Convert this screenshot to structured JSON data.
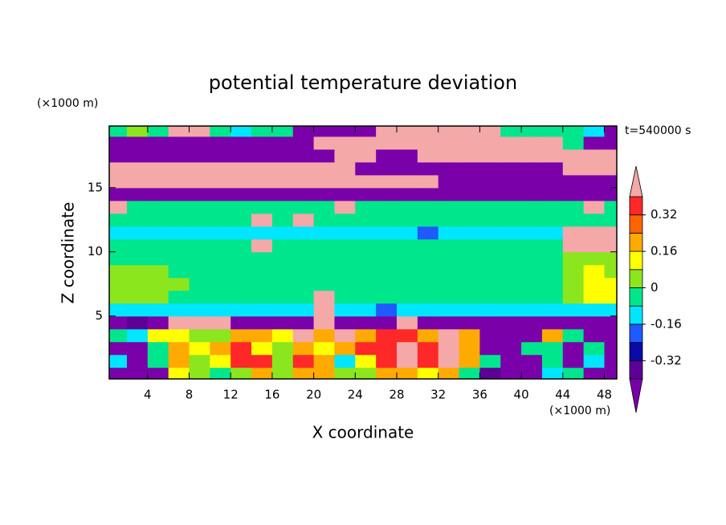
{
  "chart_data": {
    "type": "contour",
    "title": "potential temperature deviation",
    "xlabel": "X coordinate",
    "ylabel": "Z coordinate",
    "x_unit": "(×1000 m)",
    "y_unit": "(×1000 m)",
    "annotation": "t=540000 s",
    "xlim": [
      0.3,
      49.2
    ],
    "ylim": [
      0.1,
      19.8
    ],
    "xticks": [
      4,
      8,
      12,
      16,
      20,
      24,
      28,
      32,
      36,
      40,
      44,
      48
    ],
    "yticks": [
      5,
      10,
      15
    ],
    "levels": [
      -0.4,
      -0.32,
      -0.24,
      -0.16,
      -0.08,
      0,
      0.08,
      0.16,
      0.24,
      0.32,
      0.4
    ],
    "colorbar_ticks": [
      0.32,
      0.16,
      0,
      -0.16,
      -0.32
    ],
    "colors": [
      "#7a00aa",
      "#5c0096",
      "#0a0aa8",
      "#1e5aff",
      "#00e6ff",
      "#00e68c",
      "#8ce61e",
      "#ffff00",
      "#ffaa00",
      "#ff6400",
      "#ff2828",
      "#f4a8a8"
    ],
    "x": [
      1,
      3,
      5,
      7,
      9,
      11,
      13,
      15,
      17,
      19,
      21,
      23,
      25,
      27,
      29,
      31,
      33,
      35,
      37,
      39,
      41,
      43,
      45,
      47,
      49
    ],
    "y": [
      0.5,
      1.5,
      2.5,
      3.5,
      4.5,
      5.5,
      6.5,
      7.5,
      8.5,
      9.5,
      10.5,
      11.5,
      12.5,
      13.5,
      14.5,
      15.5,
      16.5,
      17.5,
      18.5,
      19.5
    ],
    "z": [
      [
        -0.5,
        -0.5,
        -0.5,
        0.12,
        0.04,
        -0.04,
        0.04,
        0.2,
        0.04,
        0.2,
        0.2,
        0.04,
        0.04,
        0.2,
        0.2,
        0.12,
        0.2,
        -0.04,
        -0.36,
        -0.5,
        -0.5,
        -0.12,
        -0.04,
        -0.5,
        -0.5
      ],
      [
        -0.12,
        -0.5,
        -0.04,
        0.2,
        0.04,
        0.12,
        0.36,
        0.36,
        0.04,
        0.36,
        0.2,
        -0.12,
        0.12,
        0.36,
        0.5,
        0.36,
        0.5,
        0.2,
        -0.04,
        -0.5,
        -0.5,
        -0.04,
        -0.5,
        -0.12,
        -0.5
      ],
      [
        -0.5,
        -0.5,
        -0.04,
        0.2,
        0.12,
        0.2,
        0.36,
        0.12,
        0.04,
        0.2,
        0.12,
        0.2,
        0.36,
        0.36,
        0.5,
        0.36,
        0.5,
        0.2,
        -0.5,
        -0.5,
        -0.04,
        -0.04,
        -0.5,
        -0.04,
        -0.5
      ],
      [
        -0.04,
        -0.12,
        0.12,
        0.12,
        0.04,
        0.04,
        0.2,
        0.2,
        0.12,
        0.5,
        0.2,
        0.5,
        0.2,
        0.36,
        0.36,
        0.2,
        0.5,
        0.2,
        -0.5,
        -0.5,
        -0.5,
        0.2,
        -0.04,
        -0.5,
        -0.5
      ],
      [
        -0.5,
        -0.36,
        -0.5,
        0.5,
        0.5,
        0.5,
        -0.5,
        -0.5,
        -0.5,
        -0.5,
        0.5,
        -0.5,
        -0.5,
        -0.5,
        0.5,
        -0.5,
        -0.5,
        -0.5,
        -0.5,
        -0.5,
        -0.5,
        -0.5,
        -0.5,
        -0.5,
        -0.5
      ],
      [
        -0.12,
        -0.12,
        -0.12,
        -0.12,
        -0.12,
        -0.12,
        -0.12,
        -0.12,
        -0.12,
        -0.12,
        0.5,
        -0.12,
        -0.12,
        -0.2,
        -0.12,
        -0.12,
        -0.12,
        -0.12,
        -0.12,
        -0.12,
        -0.12,
        -0.12,
        -0.12,
        -0.12,
        -0.12
      ],
      [
        0.04,
        0.04,
        0.04,
        -0.04,
        -0.04,
        -0.04,
        -0.04,
        -0.04,
        -0.04,
        -0.04,
        0.5,
        -0.04,
        -0.04,
        -0.04,
        -0.04,
        -0.04,
        -0.04,
        -0.04,
        -0.04,
        -0.04,
        -0.04,
        -0.04,
        0.04,
        0.12,
        0.12
      ],
      [
        0.04,
        0.04,
        0.04,
        0.04,
        -0.04,
        -0.04,
        -0.04,
        -0.04,
        -0.04,
        -0.04,
        -0.04,
        -0.04,
        -0.04,
        -0.04,
        -0.04,
        -0.04,
        -0.04,
        -0.04,
        -0.04,
        -0.04,
        -0.04,
        -0.04,
        0.04,
        0.12,
        0.12
      ],
      [
        0.04,
        0.04,
        0.04,
        -0.04,
        -0.04,
        -0.04,
        -0.04,
        -0.04,
        -0.04,
        -0.04,
        -0.04,
        -0.04,
        -0.04,
        -0.04,
        -0.04,
        -0.04,
        -0.04,
        -0.04,
        -0.04,
        -0.04,
        -0.04,
        -0.04,
        0.04,
        0.12,
        0.04
      ],
      [
        -0.04,
        -0.04,
        -0.04,
        -0.04,
        -0.04,
        -0.04,
        -0.04,
        -0.04,
        -0.04,
        -0.04,
        -0.04,
        -0.04,
        -0.04,
        -0.04,
        -0.04,
        -0.04,
        -0.04,
        -0.04,
        -0.04,
        -0.04,
        -0.04,
        -0.04,
        0.04,
        0.04,
        0.04
      ],
      [
        -0.04,
        -0.04,
        -0.04,
        -0.04,
        -0.04,
        -0.04,
        -0.04,
        0.5,
        -0.04,
        -0.04,
        -0.04,
        -0.04,
        -0.04,
        -0.04,
        -0.04,
        -0.04,
        -0.04,
        -0.04,
        -0.04,
        -0.04,
        -0.04,
        -0.04,
        0.5,
        0.5,
        0.5
      ],
      [
        -0.12,
        -0.12,
        -0.12,
        -0.12,
        -0.12,
        -0.12,
        -0.12,
        -0.12,
        -0.12,
        -0.12,
        -0.12,
        -0.12,
        -0.12,
        -0.12,
        -0.12,
        -0.2,
        -0.12,
        -0.12,
        -0.12,
        -0.12,
        -0.12,
        -0.12,
        0.5,
        0.5,
        0.5
      ],
      [
        -0.04,
        -0.04,
        -0.04,
        -0.04,
        -0.04,
        -0.04,
        -0.04,
        0.5,
        -0.04,
        0.5,
        -0.04,
        -0.04,
        -0.04,
        -0.04,
        -0.04,
        -0.04,
        -0.04,
        -0.04,
        -0.04,
        -0.04,
        -0.04,
        -0.04,
        -0.04,
        -0.04,
        -0.04
      ],
      [
        0.5,
        -0.04,
        -0.04,
        -0.04,
        -0.04,
        -0.04,
        -0.04,
        -0.04,
        -0.04,
        -0.04,
        -0.04,
        0.5,
        -0.04,
        -0.04,
        -0.04,
        -0.04,
        -0.04,
        -0.04,
        -0.04,
        -0.04,
        -0.04,
        -0.04,
        -0.04,
        0.5,
        -0.04
      ],
      [
        -0.5,
        -0.5,
        -0.5,
        -0.5,
        -0.5,
        -0.5,
        -0.5,
        -0.5,
        -0.5,
        -0.5,
        -0.5,
        -0.5,
        -0.5,
        -0.5,
        -0.5,
        -0.5,
        -0.5,
        -0.5,
        -0.5,
        -0.5,
        -0.5,
        -0.5,
        -0.5,
        -0.5,
        -0.5
      ],
      [
        0.5,
        0.5,
        0.5,
        0.5,
        0.5,
        0.5,
        0.5,
        0.5,
        0.5,
        0.5,
        0.5,
        0.5,
        0.5,
        0.5,
        0.5,
        0.5,
        -0.5,
        -0.5,
        -0.5,
        -0.5,
        -0.5,
        -0.5,
        -0.5,
        -0.5,
        -0.5
      ],
      [
        0.5,
        0.5,
        0.5,
        0.5,
        0.5,
        0.5,
        0.5,
        0.5,
        0.5,
        0.5,
        0.5,
        0.5,
        -0.5,
        -0.5,
        -0.5,
        -0.5,
        -0.5,
        -0.5,
        -0.5,
        -0.5,
        -0.5,
        -0.5,
        0.5,
        0.5,
        0.5
      ],
      [
        -0.5,
        -0.5,
        -0.5,
        -0.5,
        -0.5,
        -0.5,
        -0.5,
        -0.5,
        -0.5,
        -0.5,
        -0.5,
        0.5,
        0.5,
        -0.5,
        -0.5,
        0.5,
        0.5,
        0.5,
        0.5,
        0.5,
        0.5,
        0.5,
        0.5,
        0.5,
        0.5
      ],
      [
        -0.5,
        -0.5,
        -0.5,
        -0.5,
        -0.5,
        -0.5,
        -0.5,
        -0.5,
        -0.5,
        -0.5,
        0.5,
        0.5,
        0.5,
        0.5,
        0.5,
        0.5,
        0.5,
        0.5,
        0.5,
        0.5,
        0.5,
        0.5,
        -0.04,
        -0.5,
        -0.5
      ],
      [
        -0.04,
        0.04,
        -0.04,
        0.5,
        0.5,
        -0.04,
        -0.12,
        -0.04,
        -0.04,
        -0.5,
        -0.5,
        -0.5,
        -0.5,
        0.5,
        0.5,
        0.5,
        0.5,
        0.5,
        0.5,
        -0.04,
        -0.04,
        -0.04,
        -0.04,
        -0.12,
        -0.5
      ]
    ]
  }
}
